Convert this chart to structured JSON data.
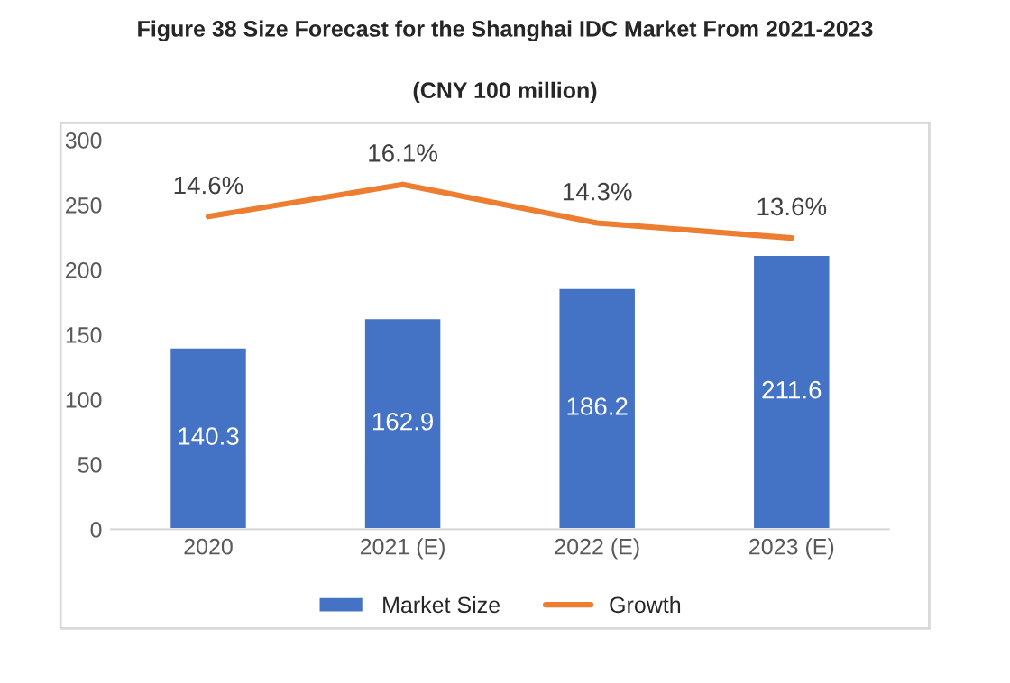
{
  "chart_data": {
    "type": "bar",
    "title": "Figure 38 Size Forecast for the Shanghai IDC Market From 2021-2023",
    "subtitle": "(CNY 100 million)",
    "categories": [
      "2020",
      "2021 (E)",
      "2022 (E)",
      "2023 (E)"
    ],
    "series": [
      {
        "name": "Market Size",
        "color": "#4472c4",
        "values": [
          140.3,
          162.9,
          186.2,
          211.6
        ]
      },
      {
        "name": "Growth",
        "type": "line",
        "axis": "y2",
        "color": "#ed7d31",
        "values": [
          14.6,
          16.1,
          14.3,
          13.6
        ],
        "value_labels": [
          "14.6%",
          "16.1%",
          "14.3%",
          "13.6%"
        ]
      }
    ],
    "ylim": [
      0,
      300
    ],
    "yticks": [
      0,
      50,
      100,
      150,
      200,
      250,
      300
    ],
    "data_labels": true,
    "grid": false,
    "legend": "bottom",
    "marker": "none",
    "line_style": "solid"
  }
}
